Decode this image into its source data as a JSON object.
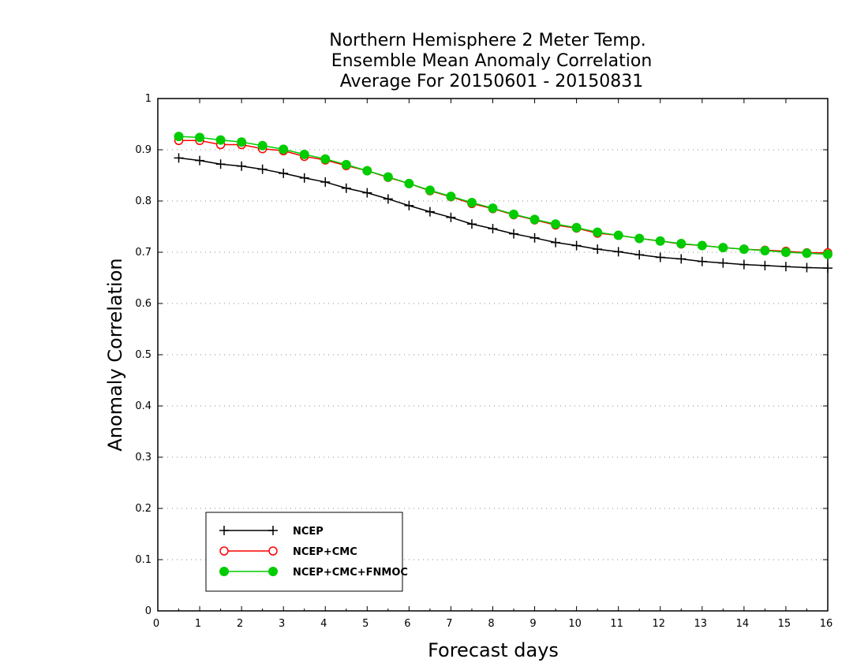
{
  "chart_data": {
    "type": "line",
    "title_lines": [
      "Northern Hemisphere 2 Meter Temp.",
      "Ensemble Mean Anomaly Correlation",
      "Average For 20150601 - 20150831"
    ],
    "xlabel": "Forecast days",
    "ylabel": "Anomaly Correlation",
    "xlim": [
      0,
      16
    ],
    "ylim": [
      0,
      1
    ],
    "x_ticks": [
      "0",
      "1",
      "2",
      "3",
      "4",
      "5",
      "6",
      "7",
      "8",
      "9",
      "10",
      "11",
      "12",
      "13",
      "14",
      "15",
      "16"
    ],
    "y_ticks": [
      "0",
      "0.1",
      "0.2",
      "0.3",
      "0.4",
      "0.5",
      "0.6",
      "0.7",
      "0.8",
      "0.9",
      "1"
    ],
    "grid": "dotted horizontal",
    "legend_position": "bottom-left",
    "x": [
      0.5,
      1,
      1.5,
      2,
      2.5,
      3,
      3.5,
      4,
      4.5,
      5,
      5.5,
      6,
      6.5,
      7,
      7.5,
      8,
      8.5,
      9,
      9.5,
      10,
      10.5,
      11,
      11.5,
      12,
      12.5,
      13,
      13.5,
      14,
      14.5,
      15,
      15.5,
      16
    ],
    "series": [
      {
        "name": "NCEP",
        "color": "#000000",
        "marker": "plus",
        "values": [
          0.884,
          0.879,
          0.872,
          0.868,
          0.862,
          0.854,
          0.845,
          0.837,
          0.825,
          0.816,
          0.804,
          0.791,
          0.779,
          0.768,
          0.755,
          0.746,
          0.736,
          0.728,
          0.719,
          0.713,
          0.706,
          0.701,
          0.695,
          0.69,
          0.687,
          0.682,
          0.679,
          0.676,
          0.674,
          0.672,
          0.67,
          0.669
        ]
      },
      {
        "name": "NCEP+CMC",
        "color": "#ff0000",
        "marker": "open-circle",
        "values": [
          0.918,
          0.918,
          0.91,
          0.91,
          0.902,
          0.898,
          0.887,
          0.88,
          0.869,
          0.859,
          0.846,
          0.834,
          0.82,
          0.808,
          0.795,
          0.785,
          0.773,
          0.763,
          0.753,
          0.747,
          0.737,
          0.733,
          0.727,
          0.722,
          0.716,
          0.713,
          0.709,
          0.706,
          0.704,
          0.702,
          0.699,
          0.699
        ]
      },
      {
        "name": "NCEP+CMC+FNMOC",
        "color": "#00cc00",
        "marker": "filled-circle",
        "values": [
          0.926,
          0.924,
          0.919,
          0.915,
          0.908,
          0.901,
          0.891,
          0.882,
          0.871,
          0.859,
          0.847,
          0.834,
          0.821,
          0.809,
          0.797,
          0.786,
          0.774,
          0.764,
          0.755,
          0.748,
          0.739,
          0.733,
          0.727,
          0.722,
          0.717,
          0.713,
          0.709,
          0.706,
          0.703,
          0.7,
          0.698,
          0.696
        ]
      }
    ]
  }
}
